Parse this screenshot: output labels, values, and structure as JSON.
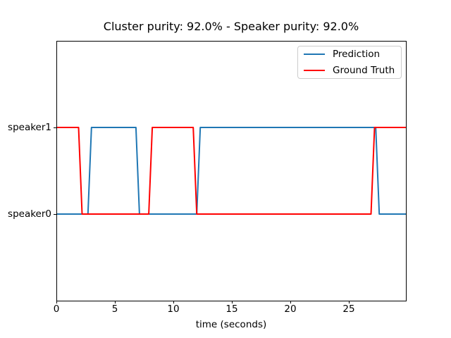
{
  "figure": {
    "background": "#ffffff"
  },
  "chart_data": {
    "type": "line",
    "title": "Cluster purity: 92.0% - Speaker purity: 92.0%",
    "xlabel": "time (seconds)",
    "ylabel": "",
    "xlim": [
      0,
      29.88
    ],
    "ylim": [
      -1,
      2
    ],
    "x_ticks": [
      0,
      5,
      10,
      15,
      20,
      25
    ],
    "y_ticks": [
      {
        "label": "speaker0",
        "value": 0
      },
      {
        "label": "speaker1",
        "value": 1
      }
    ],
    "grid": false,
    "legend_position": "upper right",
    "line_width": 2,
    "axis_color": "#000000",
    "series": [
      {
        "name": "Prediction",
        "color": "#1f77b4",
        "points": [
          [
            0,
            0
          ],
          [
            2.7,
            0
          ],
          [
            3.0,
            1
          ],
          [
            6.8,
            1
          ],
          [
            7.1,
            0
          ],
          [
            12.0,
            0
          ],
          [
            12.3,
            1
          ],
          [
            27.3,
            1
          ],
          [
            27.6,
            0
          ],
          [
            29.88,
            0
          ]
        ]
      },
      {
        "name": "Ground Truth",
        "color": "#ff0000",
        "points": [
          [
            0,
            1
          ],
          [
            1.9,
            1
          ],
          [
            2.2,
            0
          ],
          [
            7.9,
            0
          ],
          [
            8.2,
            1
          ],
          [
            11.7,
            1
          ],
          [
            12.0,
            0
          ],
          [
            26.9,
            0
          ],
          [
            27.2,
            1
          ],
          [
            29.88,
            1
          ]
        ]
      }
    ]
  }
}
